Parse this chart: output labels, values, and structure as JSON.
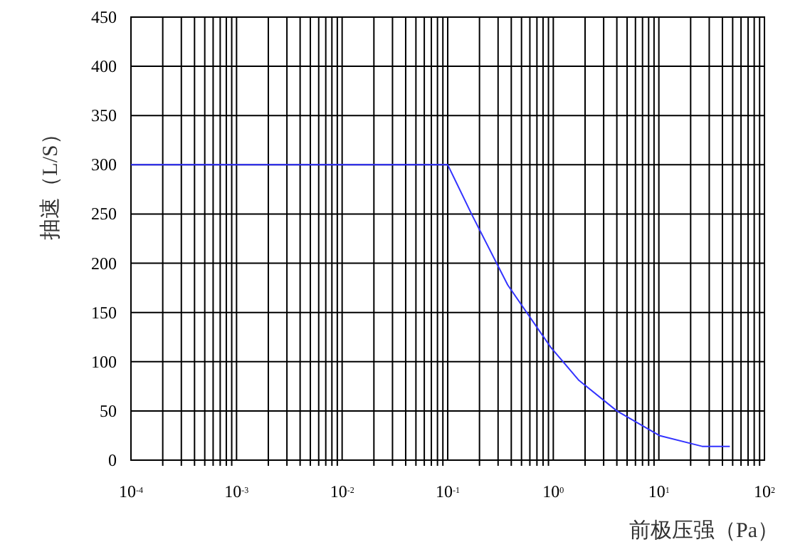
{
  "chart_data": {
    "type": "line",
    "xlabel": "前极压强（Pa）",
    "ylabel": "抽速（L/S）",
    "log": "x",
    "x": [
      0.0001,
      0.1,
      0.17,
      0.37,
      0.94,
      1.75,
      4.0,
      10.1,
      25.7,
      47
    ],
    "series": [
      {
        "color": "#3333ff",
        "values": [
          300,
          300,
          249,
          178,
          115,
          81,
          50,
          25,
          14,
          14
        ]
      }
    ],
    "xlim": [
      0.0001,
      100
    ],
    "xticks": [
      {
        "value": 0.0001,
        "label": "10$^{-4}$"
      },
      {
        "value": 0.001,
        "label": "10$^{-3}$"
      },
      {
        "value": 0.01,
        "label": "10$^{-2}$"
      },
      {
        "value": 0.1,
        "label": "10$^{-1}$"
      },
      {
        "value": 1,
        "label": "10$^{0}$"
      },
      {
        "value": 10,
        "label": "10$^{1}$"
      },
      {
        "value": 100,
        "label": "10$^{2}$"
      }
    ],
    "ylim": [
      0,
      450
    ],
    "yticks": [
      0,
      50,
      100,
      150,
      200,
      250,
      300,
      350,
      400,
      450
    ],
    "grid": true,
    "marker": "none",
    "line_style": "solid"
  }
}
